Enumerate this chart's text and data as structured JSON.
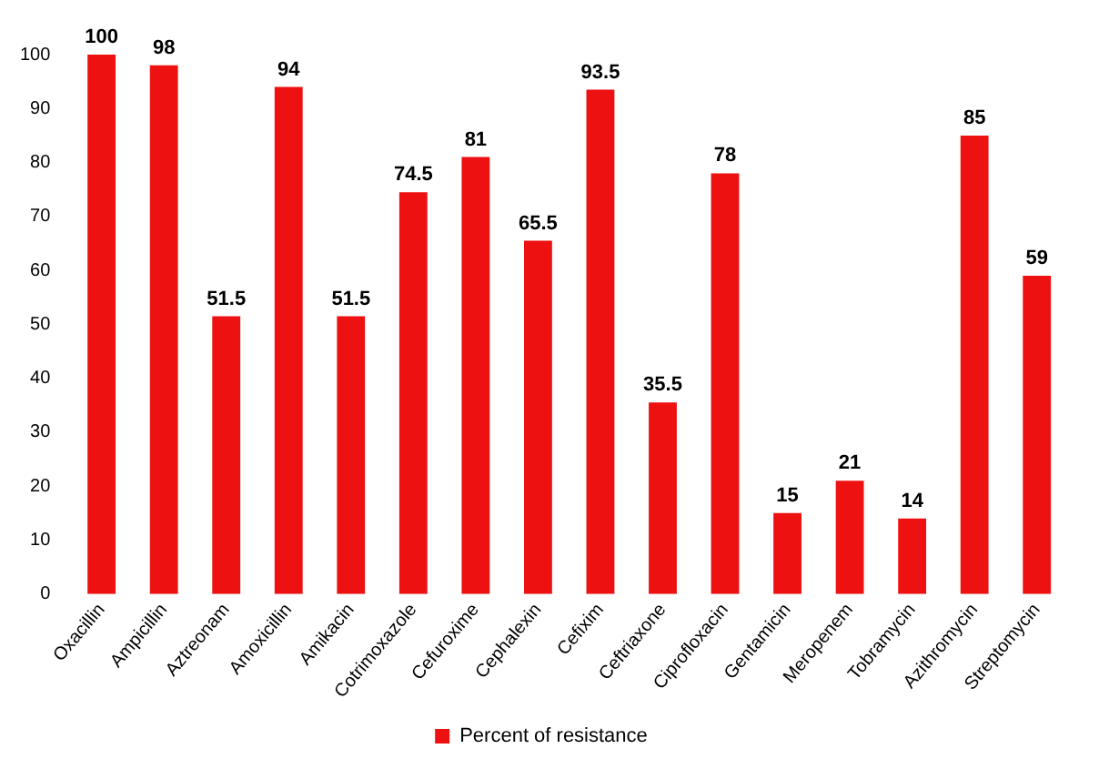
{
  "chart_data": {
    "type": "bar",
    "categories": [
      "Oxacillin",
      "Ampicillin",
      "Aztreonam",
      "Amoxicillin",
      "Amikacin",
      "Cotrimoxazole",
      "Cefuroxime",
      "Cephalexin",
      "Cefixim",
      "Ceftriaxone",
      "Ciprofloxacin",
      "Gentamicin",
      "Meropenem",
      "Tobramycin",
      "Azithromycin",
      "Streptomycin"
    ],
    "series": [
      {
        "name": "Percent of resistance",
        "color": "#ee1111",
        "values": [
          100,
          98,
          51.5,
          94,
          51.5,
          74.5,
          81,
          65.5,
          93.5,
          35.5,
          78,
          15,
          21,
          14,
          85,
          59
        ]
      }
    ],
    "ylim": [
      0,
      100
    ],
    "yticks": [
      0,
      10,
      20,
      30,
      40,
      50,
      60,
      70,
      80,
      90,
      100
    ],
    "grid": false,
    "legend": "bottom",
    "data_labels": true
  }
}
